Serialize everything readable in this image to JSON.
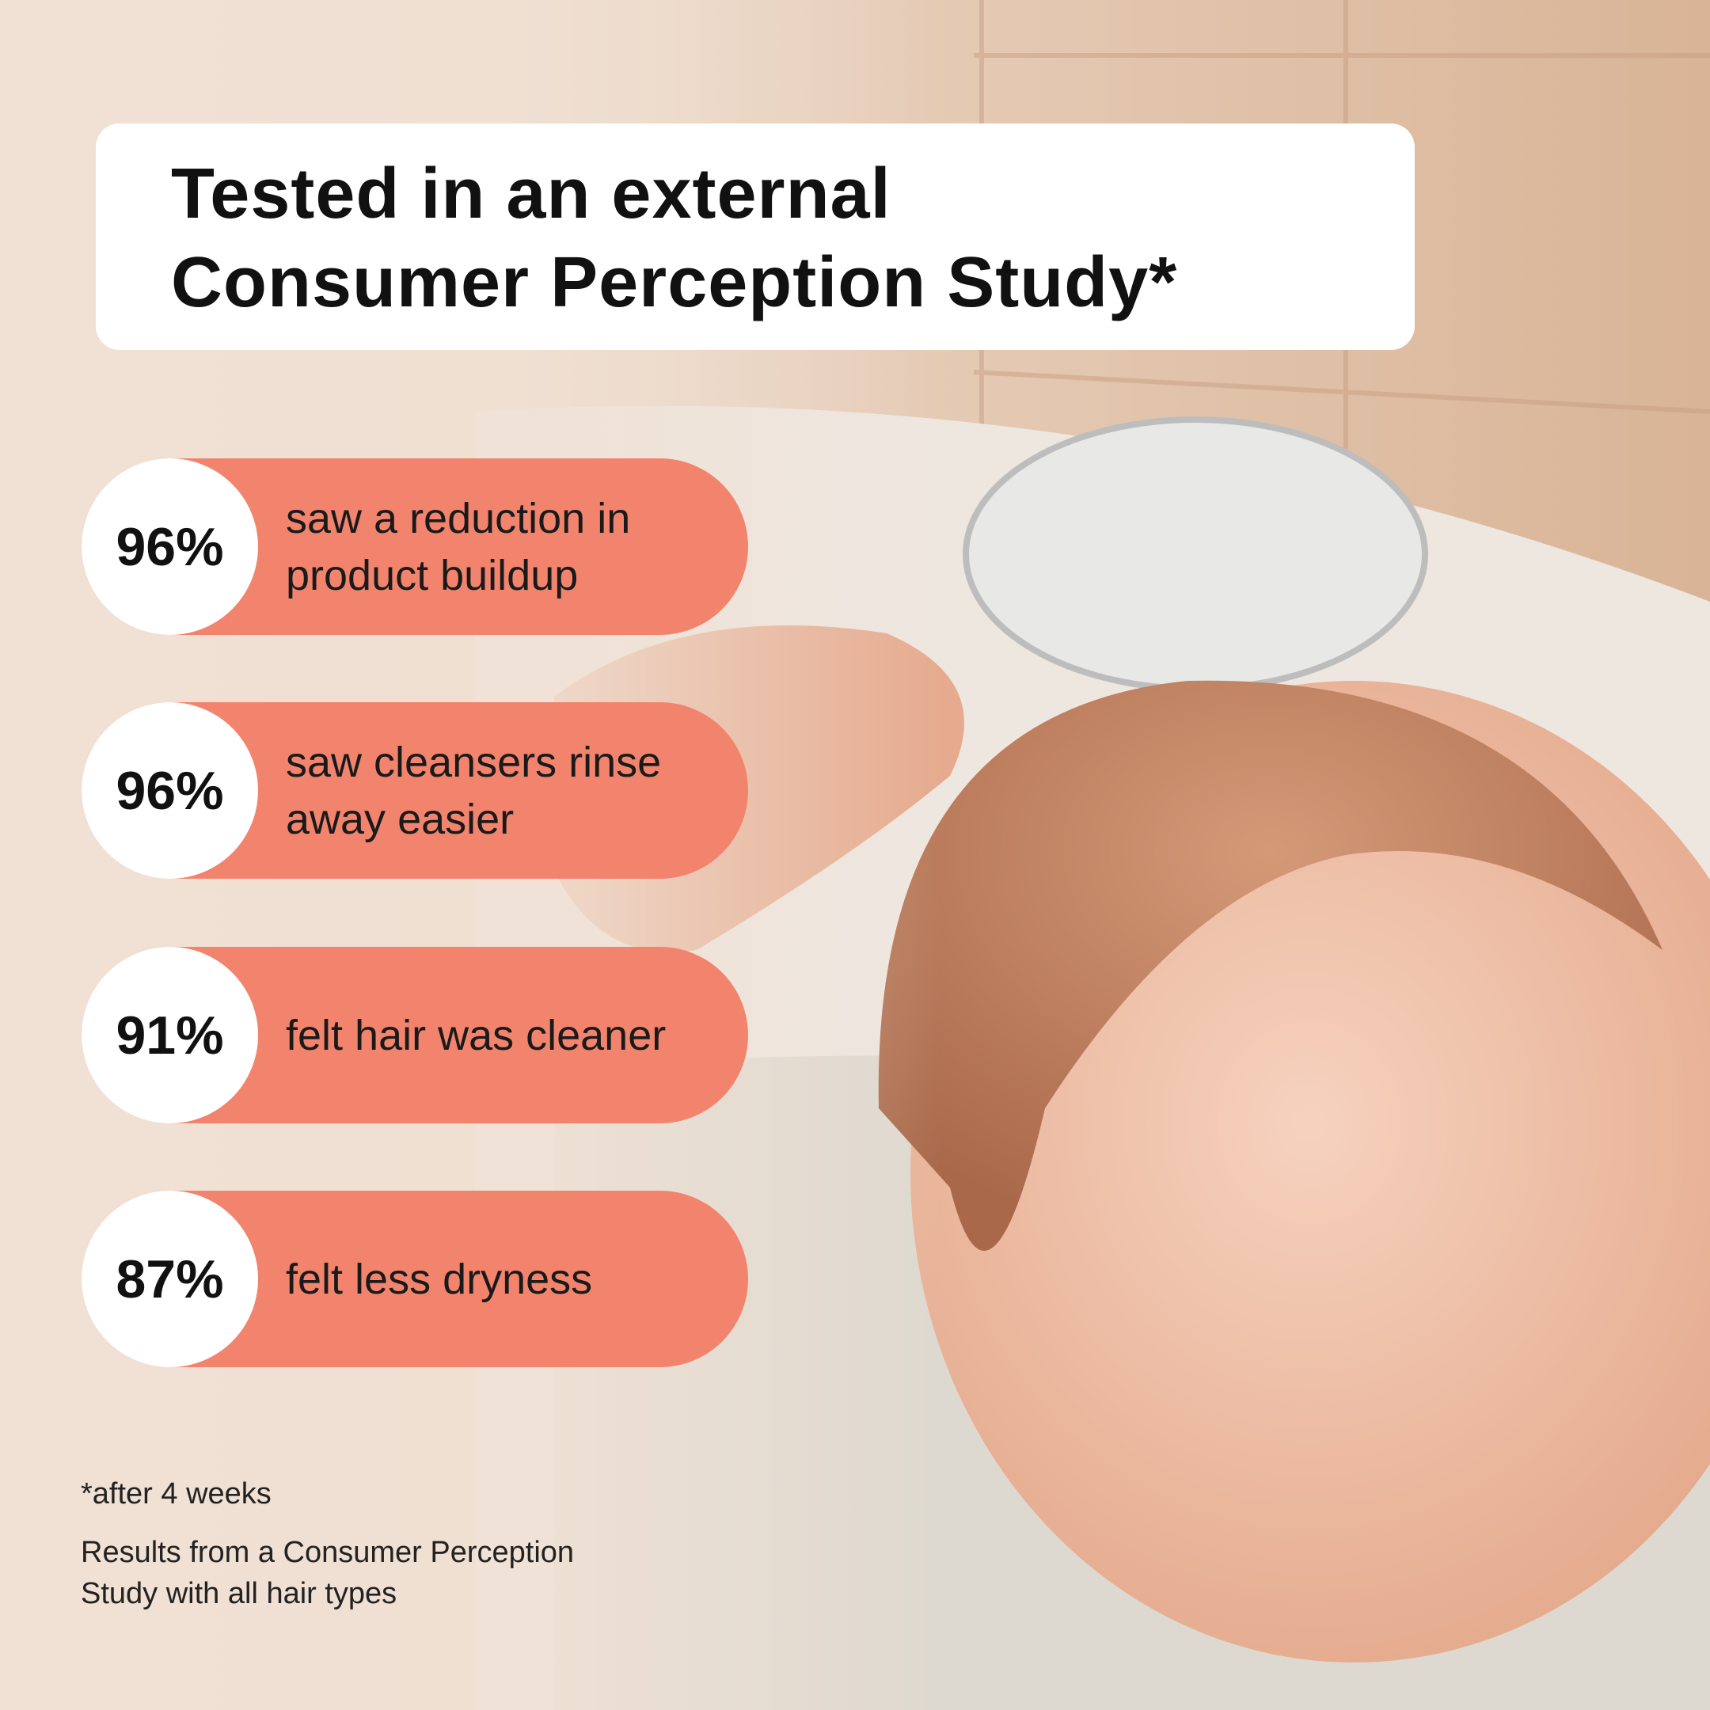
{
  "header": {
    "title_lines": [
      "Tested in an external",
      "Consumer Perception Study*"
    ]
  },
  "stats": [
    {
      "value": "96%",
      "text_lines": [
        "saw a reduction in",
        "product buildup"
      ]
    },
    {
      "value": "96%",
      "text_lines": [
        "saw cleansers rinse",
        "away easier"
      ]
    },
    {
      "value": "91%",
      "text_lines": [
        "felt hair was cleaner"
      ]
    },
    {
      "value": "87%",
      "text_lines": [
        "felt less dryness"
      ]
    }
  ],
  "footnotes": {
    "note": "*after 4 weeks",
    "source_lines": [
      "Results from a Consumer Perception",
      "Study with all hair types"
    ]
  }
}
